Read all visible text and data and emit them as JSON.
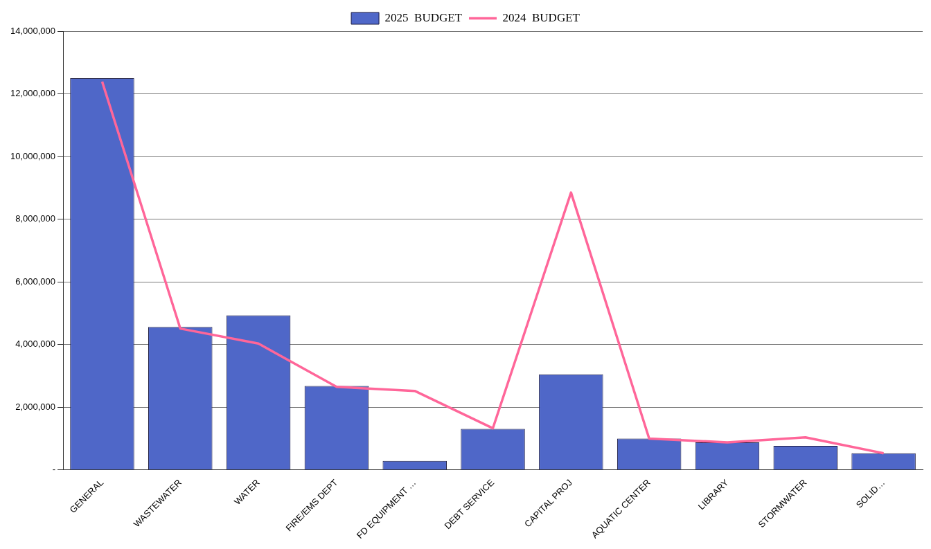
{
  "chart_data": {
    "type": "bar",
    "categories": [
      "GENERAL",
      "WASTEWATER",
      "WATER",
      "FIRE/EMS DEPT",
      "FD EQUIPMENT …",
      "DEBT SERVICE",
      "CAPITAL PROJ",
      "AQUATIC CENTER",
      "LIBRARY",
      "STORMWATER",
      "SOLID…"
    ],
    "series": [
      {
        "name": "2025  BUDGET",
        "color": "#4f67c8",
        "values": [
          12500000,
          4560000,
          4930000,
          2680000,
          290000,
          1310000,
          3050000,
          1000000,
          880000,
          770000,
          530000
        ]
      },
      {
        "name": "2024  BUDGET",
        "type": "line",
        "color": "#ff6699",
        "values": [
          12390000,
          4510000,
          4030000,
          2650000,
          2520000,
          1330000,
          8850000,
          1000000,
          880000,
          1040000,
          530000
        ]
      }
    ],
    "ylim": [
      0,
      14000000
    ],
    "yticks": [
      {
        "value": 0,
        "label": "-"
      },
      {
        "value": 2000000,
        "label": "2,000,000"
      },
      {
        "value": 4000000,
        "label": "4,000,000"
      },
      {
        "value": 6000000,
        "label": "6,000,000"
      },
      {
        "value": 8000000,
        "label": "8,000,000"
      },
      {
        "value": 10000000,
        "label": "10,000,000"
      },
      {
        "value": 12000000,
        "label": "12,000,000"
      },
      {
        "value": 14000000,
        "label": "14,000,000"
      }
    ],
    "grid": "y",
    "legend": "top",
    "marker": "none",
    "line_style": "solid"
  }
}
